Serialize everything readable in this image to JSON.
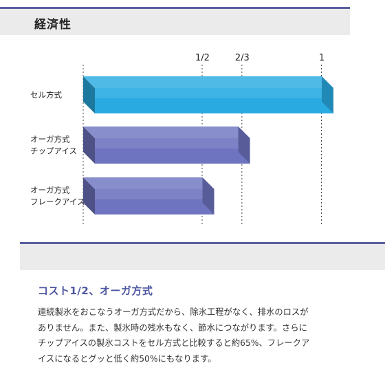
{
  "header": {
    "title": "経済性"
  },
  "chart_data": {
    "type": "bar",
    "orientation": "horizontal",
    "style": "3d",
    "categories": [
      "セル方式",
      "オーガ方式\nチップアイス",
      "オーガ方式\nフレークアイス"
    ],
    "values": [
      1.0,
      0.65,
      0.5
    ],
    "xticks": [
      {
        "value": 0.5,
        "label": "1/2"
      },
      {
        "value": 0.6667,
        "label": "2/3"
      },
      {
        "value": 1.0,
        "label": "1"
      }
    ],
    "xlim": [
      0,
      1
    ],
    "grid": "dotted vertical lines at 0, 1/2, 2/3, 1",
    "colors": [
      "#29abe2",
      "#6e74c0",
      "#6e74c0"
    ]
  },
  "section": {
    "heading": "コスト1/2、オーガ方式",
    "paragraph_lines": [
      "連続製氷をおこなうオーガ方式だから、除氷工程がなく、排水のロスが",
      "ありません。また、製氷時の残水もなく、節水につながります。さらに",
      "チップアイスの製氷コストをセル方式と比較すると約65%、フレークア",
      "イスになるとグッと低く約50%にもなります。"
    ]
  }
}
